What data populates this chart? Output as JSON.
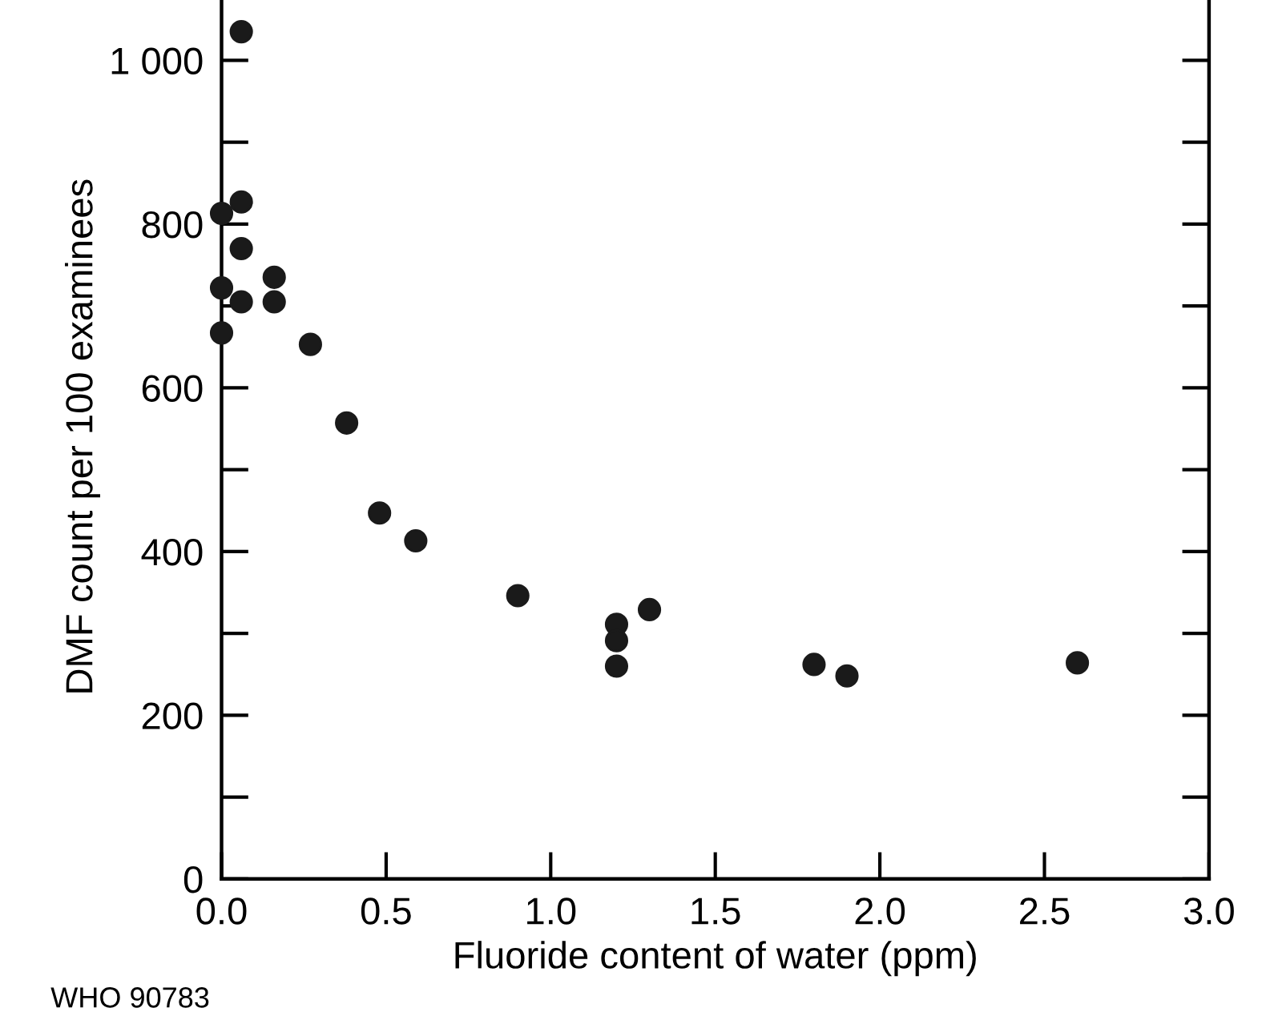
{
  "chart_data": {
    "type": "scatter",
    "xlabel": "Fluoride content of water (ppm)",
    "ylabel": "DMF count per 100 examinees",
    "annotations": [
      "WHO 90783"
    ],
    "x": [
      0.06,
      0.06,
      0.0,
      0.06,
      0.16,
      0.0,
      0.06,
      0.16,
      0.0,
      0.27,
      0.38,
      0.48,
      0.59,
      0.9,
      1.2,
      1.2,
      1.2,
      1.3,
      1.8,
      1.9,
      2.6
    ],
    "values": [
      1035,
      827,
      813,
      770,
      735,
      722,
      705,
      705,
      667,
      653,
      557,
      447,
      413,
      346,
      311,
      291,
      260,
      329,
      262,
      248,
      264
    ],
    "color": "#1a1a1a",
    "marker": "circle",
    "xlim": [
      0,
      3.0
    ],
    "ylim": [
      0,
      1080
    ],
    "xticks": [
      {
        "value": 0,
        "label": "0.0"
      },
      {
        "value": 0.5,
        "label": "0.5"
      },
      {
        "value": 1.0,
        "label": "1.0"
      },
      {
        "value": 1.5,
        "label": "1.5"
      },
      {
        "value": 2.0,
        "label": "2.0"
      },
      {
        "value": 2.5,
        "label": "2.5"
      },
      {
        "value": 3.0,
        "label": "3.0"
      }
    ],
    "yticks": [
      0,
      200,
      400,
      600,
      800,
      {
        "value": 1000,
        "label": "1 000"
      }
    ],
    "grid": false
  }
}
